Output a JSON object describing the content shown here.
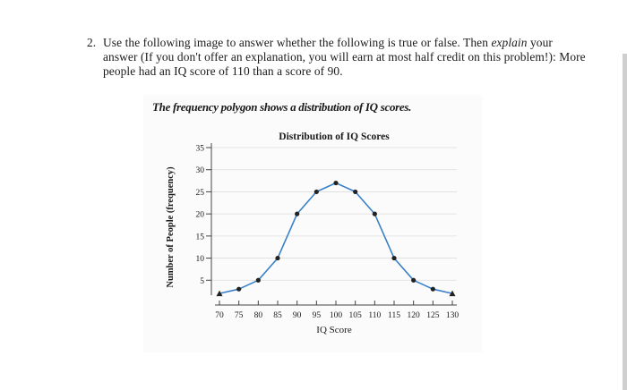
{
  "question": {
    "number": "2.",
    "text_before": "Use the following image to answer whether the following is true or false. Then ",
    "emphasis": "explain",
    "text_after": " your answer (If you don't offer an explanation, you will earn at most half credit on this problem!): More people had an IQ score of 110 than a score of 90."
  },
  "figure": {
    "caption": "The frequency polygon shows a distribution of IQ scores."
  },
  "chart_data": {
    "type": "line",
    "title": "Distribution of IQ Scores",
    "xlabel": "IQ Score",
    "ylabel": "Number of People (frequency)",
    "x": [
      70,
      75,
      80,
      85,
      90,
      95,
      100,
      105,
      110,
      115,
      120,
      125,
      130
    ],
    "y": [
      2,
      3,
      5,
      10,
      20,
      25,
      27,
      25,
      20,
      10,
      5,
      3,
      2
    ],
    "xticks": [
      "70",
      "75",
      "80",
      "85",
      "90",
      "95",
      "100",
      "105",
      "110",
      "115",
      "120",
      "125",
      "130"
    ],
    "yticks": [
      "5",
      "10",
      "15",
      "20",
      "25",
      "30",
      "35"
    ],
    "xlim": [
      70,
      130
    ],
    "ylim": [
      0,
      35
    ],
    "grid": true,
    "colors": {
      "line": "#3a80c8",
      "marker": "#222222"
    }
  }
}
